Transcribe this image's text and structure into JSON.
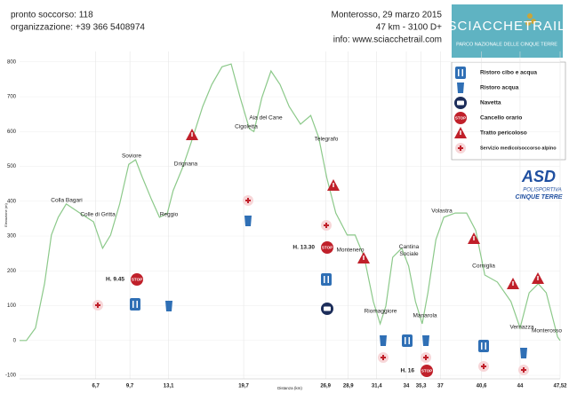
{
  "header": {
    "emergency": "pronto soccorso: 118",
    "organization": "organizzazione: +39 366 5408974",
    "event": "Monterosso, 29 marzo 2015",
    "stats": "47 km - 3100 D+",
    "info": "info: www.sciacchetrail.com"
  },
  "logo": {
    "title": "SCIACCHETRAIL",
    "subtitle": "PARCO NAZIONALE DELLE CINQUE TERRE"
  },
  "sponsor": {
    "title": "ASD",
    "line1": "POLISPORTIVA",
    "line2": "CINQUE TERRE"
  },
  "legend": [
    "Ristoro cibo e acqua",
    "Ristoro acqua",
    "Navetta",
    "Cancello orario",
    "Tratto pericoloso",
    "Servizio medico/soccorso alpino"
  ],
  "cutoffs": [
    "H. 9.45",
    "H. 13.30",
    "H. 16"
  ],
  "places": [
    "Colla Bagari",
    "Colle di Gritta",
    "Soviore",
    "Reggio",
    "Drignana",
    "Cigoletta",
    "Aia del Cane",
    "Telegrafo",
    "Montenero",
    "Riomaggiore",
    "Cantina Sociale",
    "Manarola",
    "Volastra",
    "Corniglia",
    "Vernazza",
    "Monterosso"
  ],
  "chart_data": {
    "type": "line",
    "x_label": "Distanza (km)",
    "y_label": "Elevazione (m)",
    "color": "#8cc98a",
    "x": [
      0,
      0.6,
      1.4,
      2.2,
      2.8,
      3.4,
      4.1,
      5.3,
      6.5,
      7.3,
      8.0,
      8.8,
      9.6,
      10.2,
      10.8,
      11.6,
      12.3,
      13.0,
      13.5,
      14.3,
      15.1,
      16.1,
      16.9,
      17.8,
      18.6,
      19.4,
      20.2,
      20.6,
      21.3,
      22.1,
      22.9,
      23.7,
      24.7,
      25.6,
      26.3,
      27.0,
      27.8,
      28.8,
      29.5,
      30.3,
      31.1,
      31.7,
      32.2,
      32.8,
      33.6,
      34.2,
      34.8,
      35.4,
      35.9,
      36.6,
      37.3,
      38.3,
      39.3,
      40.1,
      40.9,
      42.0,
      43.2,
      44.0,
      44.8,
      45.6,
      46.3,
      47.3,
      47.52
    ],
    "values": [
      0,
      0,
      36,
      163,
      303,
      354,
      392,
      366,
      341,
      265,
      303,
      392,
      506,
      519,
      468,
      405,
      354,
      366,
      430,
      494,
      570,
      672,
      735,
      786,
      794,
      697,
      608,
      600,
      697,
      774,
      735,
      672,
      621,
      646,
      583,
      468,
      366,
      303,
      303,
      239,
      112,
      48,
      99,
      239,
      265,
      214,
      112,
      48,
      137,
      290,
      354,
      366,
      366,
      316,
      188,
      168,
      112,
      36,
      137,
      163,
      137,
      10,
      0
    ],
    "xlim": [
      0,
      47.52
    ],
    "ylim": [
      -110,
      830
    ],
    "xticks": [
      {
        "value": 6.7,
        "label": "6,7"
      },
      {
        "value": 9.7,
        "label": "9,7"
      },
      {
        "value": 13.1,
        "label": "13,1"
      },
      {
        "value": 19.7,
        "label": "19,7"
      },
      {
        "value": 26.9,
        "label": "26,9"
      },
      {
        "value": 28.9,
        "label": "28,9"
      },
      {
        "value": 31.4,
        "label": "31,4"
      },
      34,
      {
        "value": 35.3,
        "label": "35,3"
      },
      37,
      {
        "value": 40.6,
        "label": "40,6"
      },
      44,
      {
        "value": 47.52,
        "label": "47,52"
      }
    ],
    "yticks": [
      -100,
      0,
      100,
      200,
      300,
      400,
      500,
      600,
      700,
      800
    ]
  }
}
